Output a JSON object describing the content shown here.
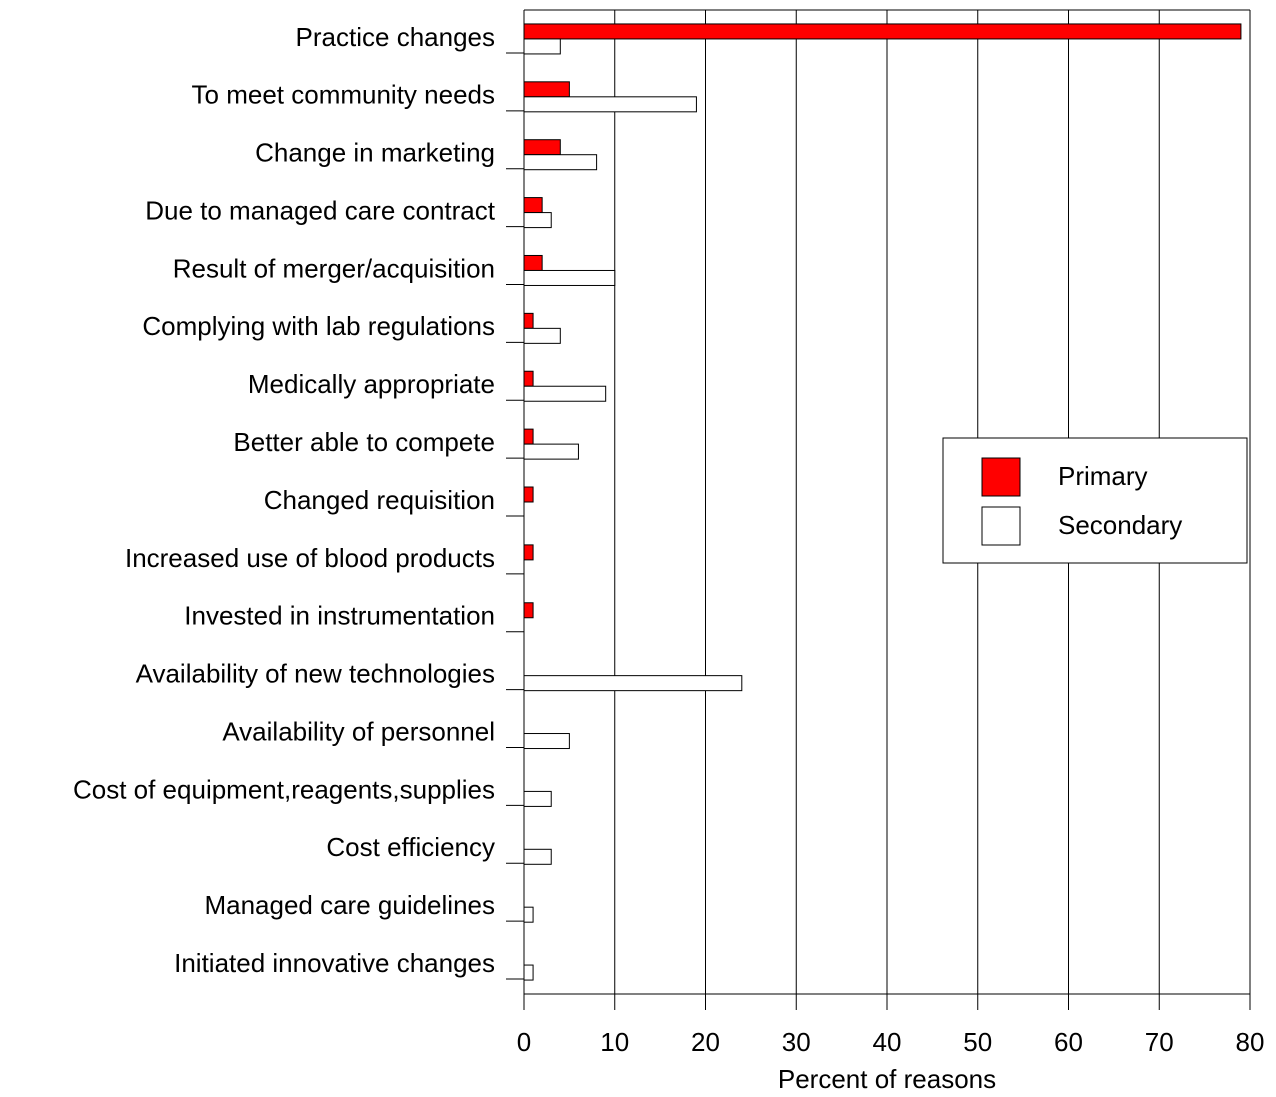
{
  "chart_data": {
    "type": "hbar",
    "x_label": "Percent of reasons",
    "categories": [
      "Practice changes",
      "To meet community needs",
      "Change in marketing",
      "Due to managed care contract",
      "Result of merger/acquisition",
      "Complying with lab regulations",
      "Medically appropriate",
      "Better able to compete",
      "Changed requisition",
      "Increased use of blood products",
      "Invested in instrumentation",
      "Availability of new technologies",
      "Availability of personnel",
      "Cost of equipment,reagents,supplies",
      "Cost efficiency",
      "Managed care guidelines",
      "Initiated innovative changes"
    ],
    "series": [
      {
        "name": "Primary",
        "color": "#ff0000",
        "values": [
          79,
          5,
          4,
          2,
          2,
          1,
          1,
          1,
          1,
          1,
          1,
          0,
          0,
          0,
          0,
          0,
          0
        ]
      },
      {
        "name": "Secondary",
        "color": "#ffffff",
        "values": [
          4,
          19,
          8,
          3,
          10,
          4,
          9,
          6,
          0,
          0,
          0,
          24,
          5,
          3,
          3,
          1,
          1
        ]
      }
    ],
    "xlim": [
      0,
      80
    ],
    "xticks": [
      0,
      10,
      20,
      30,
      40,
      50,
      60,
      70,
      80
    ],
    "grid": true,
    "legend": "right"
  }
}
